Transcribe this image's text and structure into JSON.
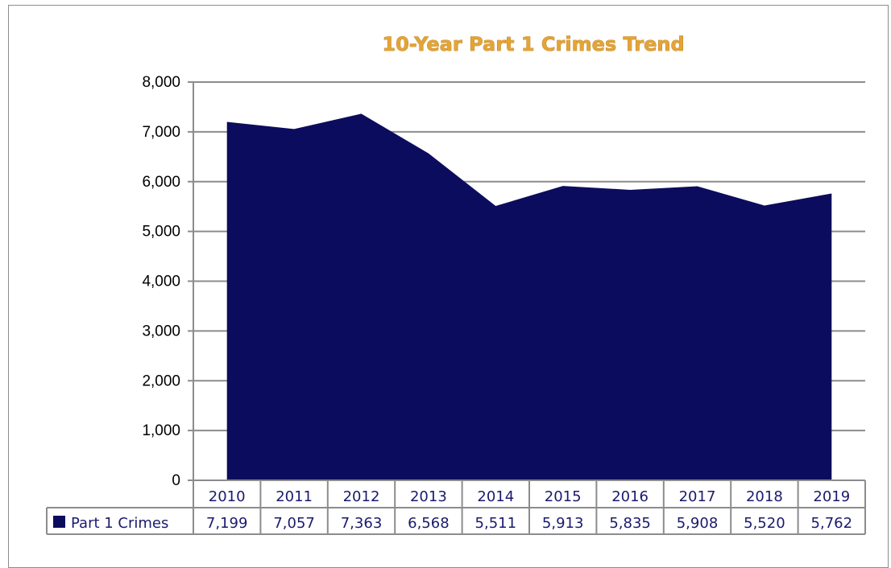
{
  "chart_data": {
    "type": "area",
    "title": "10-Year Part 1 Crimes Trend",
    "categories": [
      "2010",
      "2011",
      "2012",
      "2013",
      "2014",
      "2015",
      "2016",
      "2017",
      "2018",
      "2019"
    ],
    "series": [
      {
        "name": "Part 1 Crimes",
        "values": [
          7199,
          7057,
          7363,
          6568,
          5511,
          5913,
          5835,
          5908,
          5520,
          5762
        ],
        "value_labels": [
          "7,199",
          "7,057",
          "7,363",
          "6,568",
          "5,511",
          "5,913",
          "5,835",
          "5,908",
          "5,520",
          "5,762"
        ],
        "color": "#0c0c5e"
      }
    ],
    "ylim": [
      0,
      8000
    ],
    "yticks": [
      0,
      1000,
      2000,
      3000,
      4000,
      5000,
      6000,
      7000,
      8000
    ],
    "ytick_labels": [
      "0",
      "1,000",
      "2,000",
      "3,000",
      "4,000",
      "5,000",
      "6,000",
      "7,000",
      "8,000"
    ],
    "grid": true,
    "legend": "data-table"
  },
  "colors": {
    "title": "#e5a434",
    "area": "#0c0c5e",
    "gridline": "#8c8c8c",
    "text": "#1a1a6e"
  }
}
